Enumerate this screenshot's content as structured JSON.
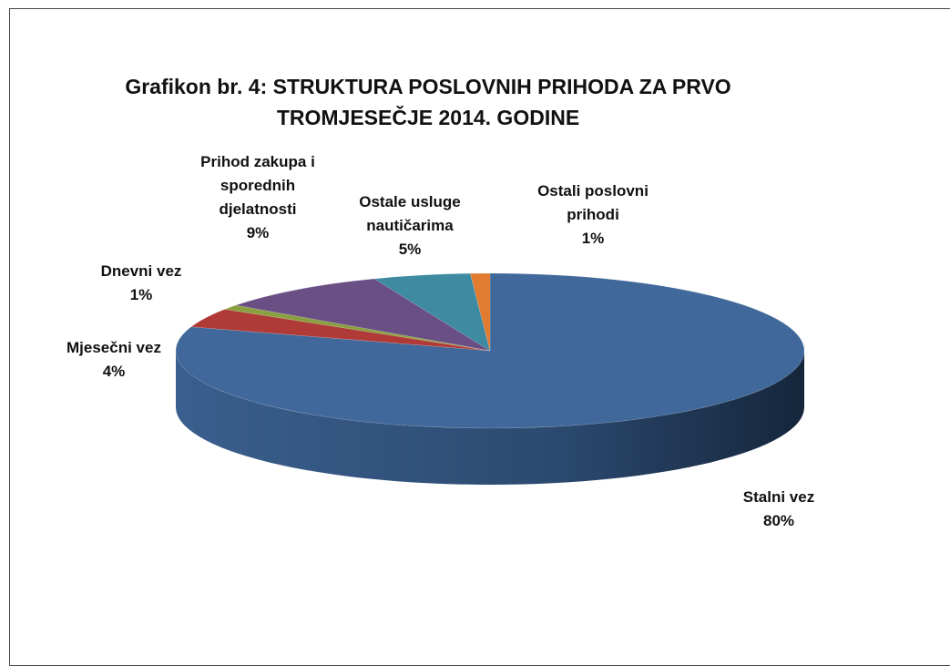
{
  "chart_data": {
    "type": "pie3d",
    "title": "Grafikon br. 4: STRUKTURA POSLOVNIH PRIHODA ZA PRVO TROMJESEČJE 2014. GODINE",
    "categories": [
      "Stalni vez",
      "Mjesečni vez",
      "Dnevni vez",
      "Prihod zakupa i sporednih djelatnosti",
      "Ostale usluge nautičarima",
      "Ostali poslovni prihodi"
    ],
    "values": [
      80,
      4,
      1,
      9,
      5,
      1
    ],
    "value_labels": [
      "80%",
      "4%",
      "1%",
      "9%",
      "5%",
      "1%"
    ],
    "colors": [
      "#41689a",
      "#b03a37",
      "#8aa040",
      "#6a4f85",
      "#3e8aa0",
      "#e07b30"
    ]
  }
}
